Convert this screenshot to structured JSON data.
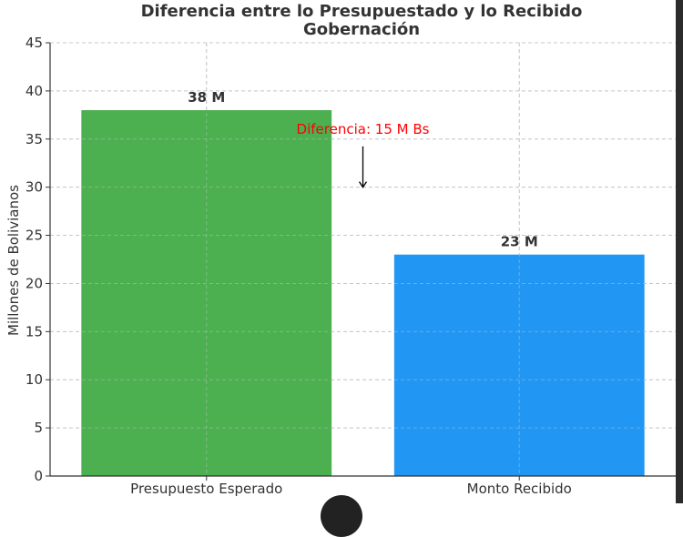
{
  "chart_data": {
    "type": "bar",
    "title": "Diferencia entre lo Presupuestado y lo Recibido",
    "subtitle": "Gobernación",
    "xlabel": "",
    "ylabel": "Millones de Bolivianos",
    "categories": [
      "Presupuesto Esperado",
      "Monto Recibido"
    ],
    "values": [
      38,
      23
    ],
    "data_labels": [
      "38 M",
      "23 M"
    ],
    "colors": [
      "#4caf50",
      "#2196f3"
    ],
    "ylim": [
      0,
      45
    ],
    "yticks": [
      0,
      5,
      10,
      15,
      20,
      25,
      30,
      35,
      40,
      45
    ],
    "grid": true,
    "annotation": {
      "text": "Diferencia: 15 M Bs",
      "color": "#ff0000",
      "arrow_from_value": 35,
      "arrow_to_value": 30
    }
  }
}
